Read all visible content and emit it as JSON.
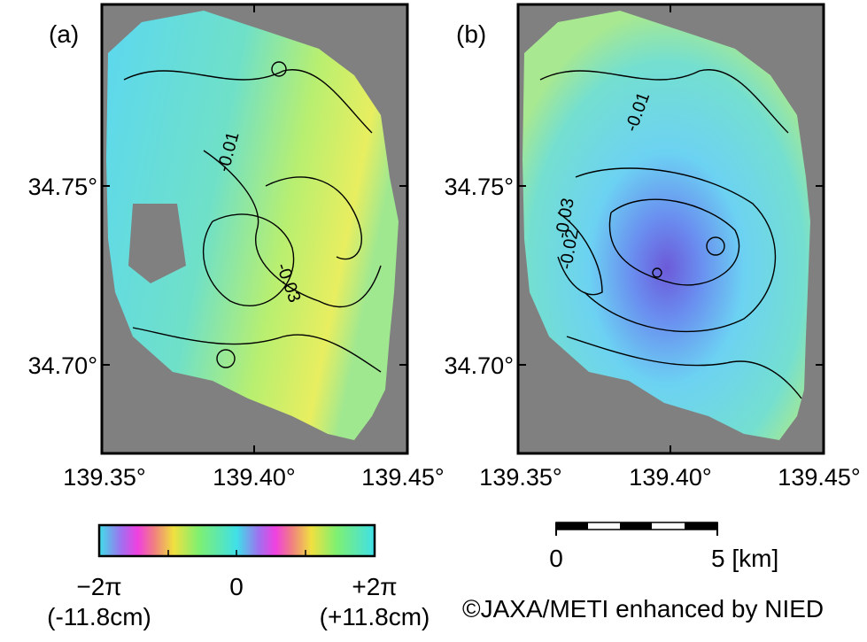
{
  "panels": [
    {
      "label": "(a)",
      "yticks": [
        "34.75°",
        "34.70°"
      ],
      "xticks": [
        "139.35°",
        "139.40°",
        "139.45°"
      ],
      "contour_labels": [
        "-0.01",
        "-0.03"
      ]
    },
    {
      "label": "(b)",
      "yticks": [
        "34.75°",
        "34.70°"
      ],
      "xticks": [
        "139.35°",
        "139.40°",
        "139.45°"
      ],
      "contour_labels": [
        "-0.01",
        "-0.03",
        "-0.02"
      ]
    }
  ],
  "colorbar": {
    "left_label": "−2π",
    "center_label": "0",
    "right_label": "+2π",
    "left_unit": "(-11.8cm)",
    "right_unit": "(+11.8cm)"
  },
  "scale_bar": {
    "start_label": "0",
    "end_label": "5 [km]"
  },
  "credit": "©JAXA/METI enhanced by NIED"
}
